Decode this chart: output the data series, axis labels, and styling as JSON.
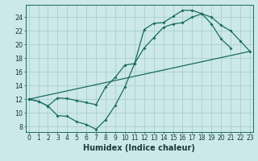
{
  "xlabel": "Humidex (Indice chaleur)",
  "bg_color": "#cce8e8",
  "grid_color": "#aad0d0",
  "line_color": "#1a6b60",
  "line1_x": [
    0,
    1,
    2,
    3,
    4,
    5,
    6,
    7,
    8,
    9,
    10,
    11,
    12,
    13,
    14,
    15,
    16,
    17,
    18,
    19,
    20,
    21
  ],
  "line1_y": [
    12,
    11.7,
    11.0,
    9.6,
    9.5,
    8.7,
    8.3,
    7.6,
    9.0,
    11.1,
    13.8,
    17.2,
    22.2,
    23.1,
    23.2,
    24.1,
    25.0,
    25.0,
    24.5,
    23.0,
    20.8,
    19.5
  ],
  "line2_x": [
    0,
    1,
    2,
    3,
    4,
    5,
    6,
    7,
    8,
    9,
    10,
    11,
    12,
    13,
    14,
    15,
    16,
    17,
    18,
    19,
    20,
    21,
    22,
    23
  ],
  "line2_y": [
    12,
    11.7,
    11.0,
    12.2,
    12.1,
    11.8,
    11.5,
    11.2,
    13.8,
    15.2,
    17.0,
    17.2,
    19.5,
    21.0,
    22.5,
    23.0,
    23.2,
    24.0,
    24.5,
    24.0,
    22.8,
    22.0,
    20.5,
    19.0
  ],
  "line3_x": [
    0,
    23
  ],
  "line3_y": [
    12,
    19.0
  ],
  "xlim": [
    -0.3,
    23.3
  ],
  "ylim": [
    7.2,
    25.8
  ],
  "xticks": [
    0,
    1,
    2,
    3,
    4,
    5,
    6,
    7,
    8,
    9,
    10,
    11,
    12,
    13,
    14,
    15,
    16,
    17,
    18,
    19,
    20,
    21,
    22,
    23
  ],
  "yticks": [
    8,
    10,
    12,
    14,
    16,
    18,
    20,
    22,
    24
  ],
  "tick_fontsize": 5.5,
  "xlabel_fontsize": 7
}
